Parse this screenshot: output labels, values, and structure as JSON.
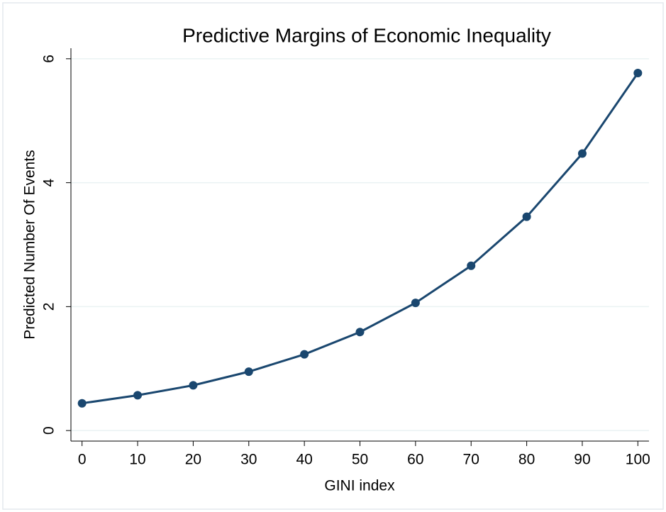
{
  "chart_data": {
    "type": "line",
    "title": "Predictive Margins of Economic Inequality",
    "x_label": "GINI index",
    "y_label": "Predicted Number Of Events",
    "x": [
      0,
      10,
      20,
      30,
      40,
      50,
      60,
      70,
      80,
      90,
      100
    ],
    "series": [
      {
        "name": "Predicted number of events",
        "color": "#1a476f",
        "values": [
          0.44,
          0.57,
          0.73,
          0.95,
          1.23,
          1.59,
          2.06,
          2.66,
          3.45,
          4.47,
          5.77
        ]
      }
    ],
    "xlim": [
      -2,
      102
    ],
    "xticks": [
      0,
      10,
      20,
      30,
      40,
      50,
      60,
      70,
      80,
      90,
      100
    ],
    "ylim": [
      -0.17,
      6.17
    ],
    "yticks": [
      0,
      2,
      4,
      6
    ],
    "grid": true
  }
}
